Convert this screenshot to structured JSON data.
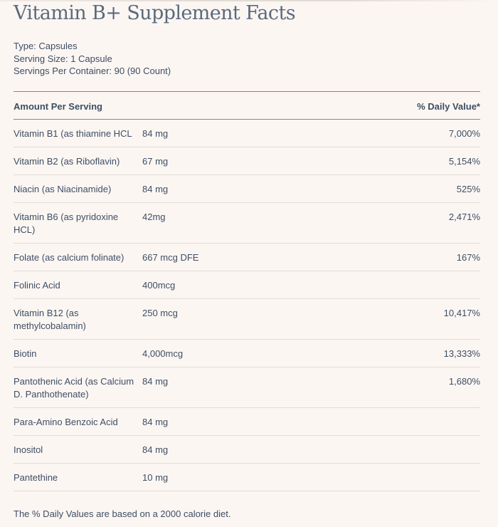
{
  "title": "Vitamin B+ Supplement Facts",
  "meta": {
    "type": "Type: Capsules",
    "serving_size": "Serving Size: 1 Capsule",
    "servings_per_container": "Servings Per Container: 90 (90 Count)"
  },
  "table": {
    "headers": {
      "amount_per_serving": "Amount Per Serving",
      "daily_value": "% Daily Value*"
    },
    "rows": [
      {
        "name": "Vitamin B1 (as thiamine HCL",
        "amount": "84 mg",
        "dv": "7,000%"
      },
      {
        "name": "Vitamin B2 (as Riboflavin)",
        "amount": "67 mg",
        "dv": "5,154%"
      },
      {
        "name": "Niacin (as Niacinamide)",
        "amount": "84 mg",
        "dv": "525%"
      },
      {
        "name": "Vitamin B6 (as pyridoxine HCL)",
        "amount": "42mg",
        "dv": "2,471%"
      },
      {
        "name": "Folate (as calcium folinate)",
        "amount": "667 mcg DFE",
        "dv": "167%"
      },
      {
        "name": "Folinic Acid",
        "amount": "400mcg",
        "dv": ""
      },
      {
        "name": "Vitamin B12 (as methylcobalamin)",
        "amount": "250 mcg",
        "dv": "10,417%"
      },
      {
        "name": "Biotin",
        "amount": "4,000mcg",
        "dv": "13,333%"
      },
      {
        "name": "Pantothenic Acid (as Calcium D. Panthothenate)",
        "amount": "84 mg",
        "dv": "1,680%"
      },
      {
        "name": "Para-Amino Benzoic Acid",
        "amount": "84 mg",
        "dv": ""
      },
      {
        "name": "Inositol",
        "amount": "84 mg",
        "dv": ""
      },
      {
        "name": "Pantethine",
        "amount": "10 mg",
        "dv": ""
      }
    ]
  },
  "footnote": "The % Daily Values are based on a 2000 calorie diet."
}
